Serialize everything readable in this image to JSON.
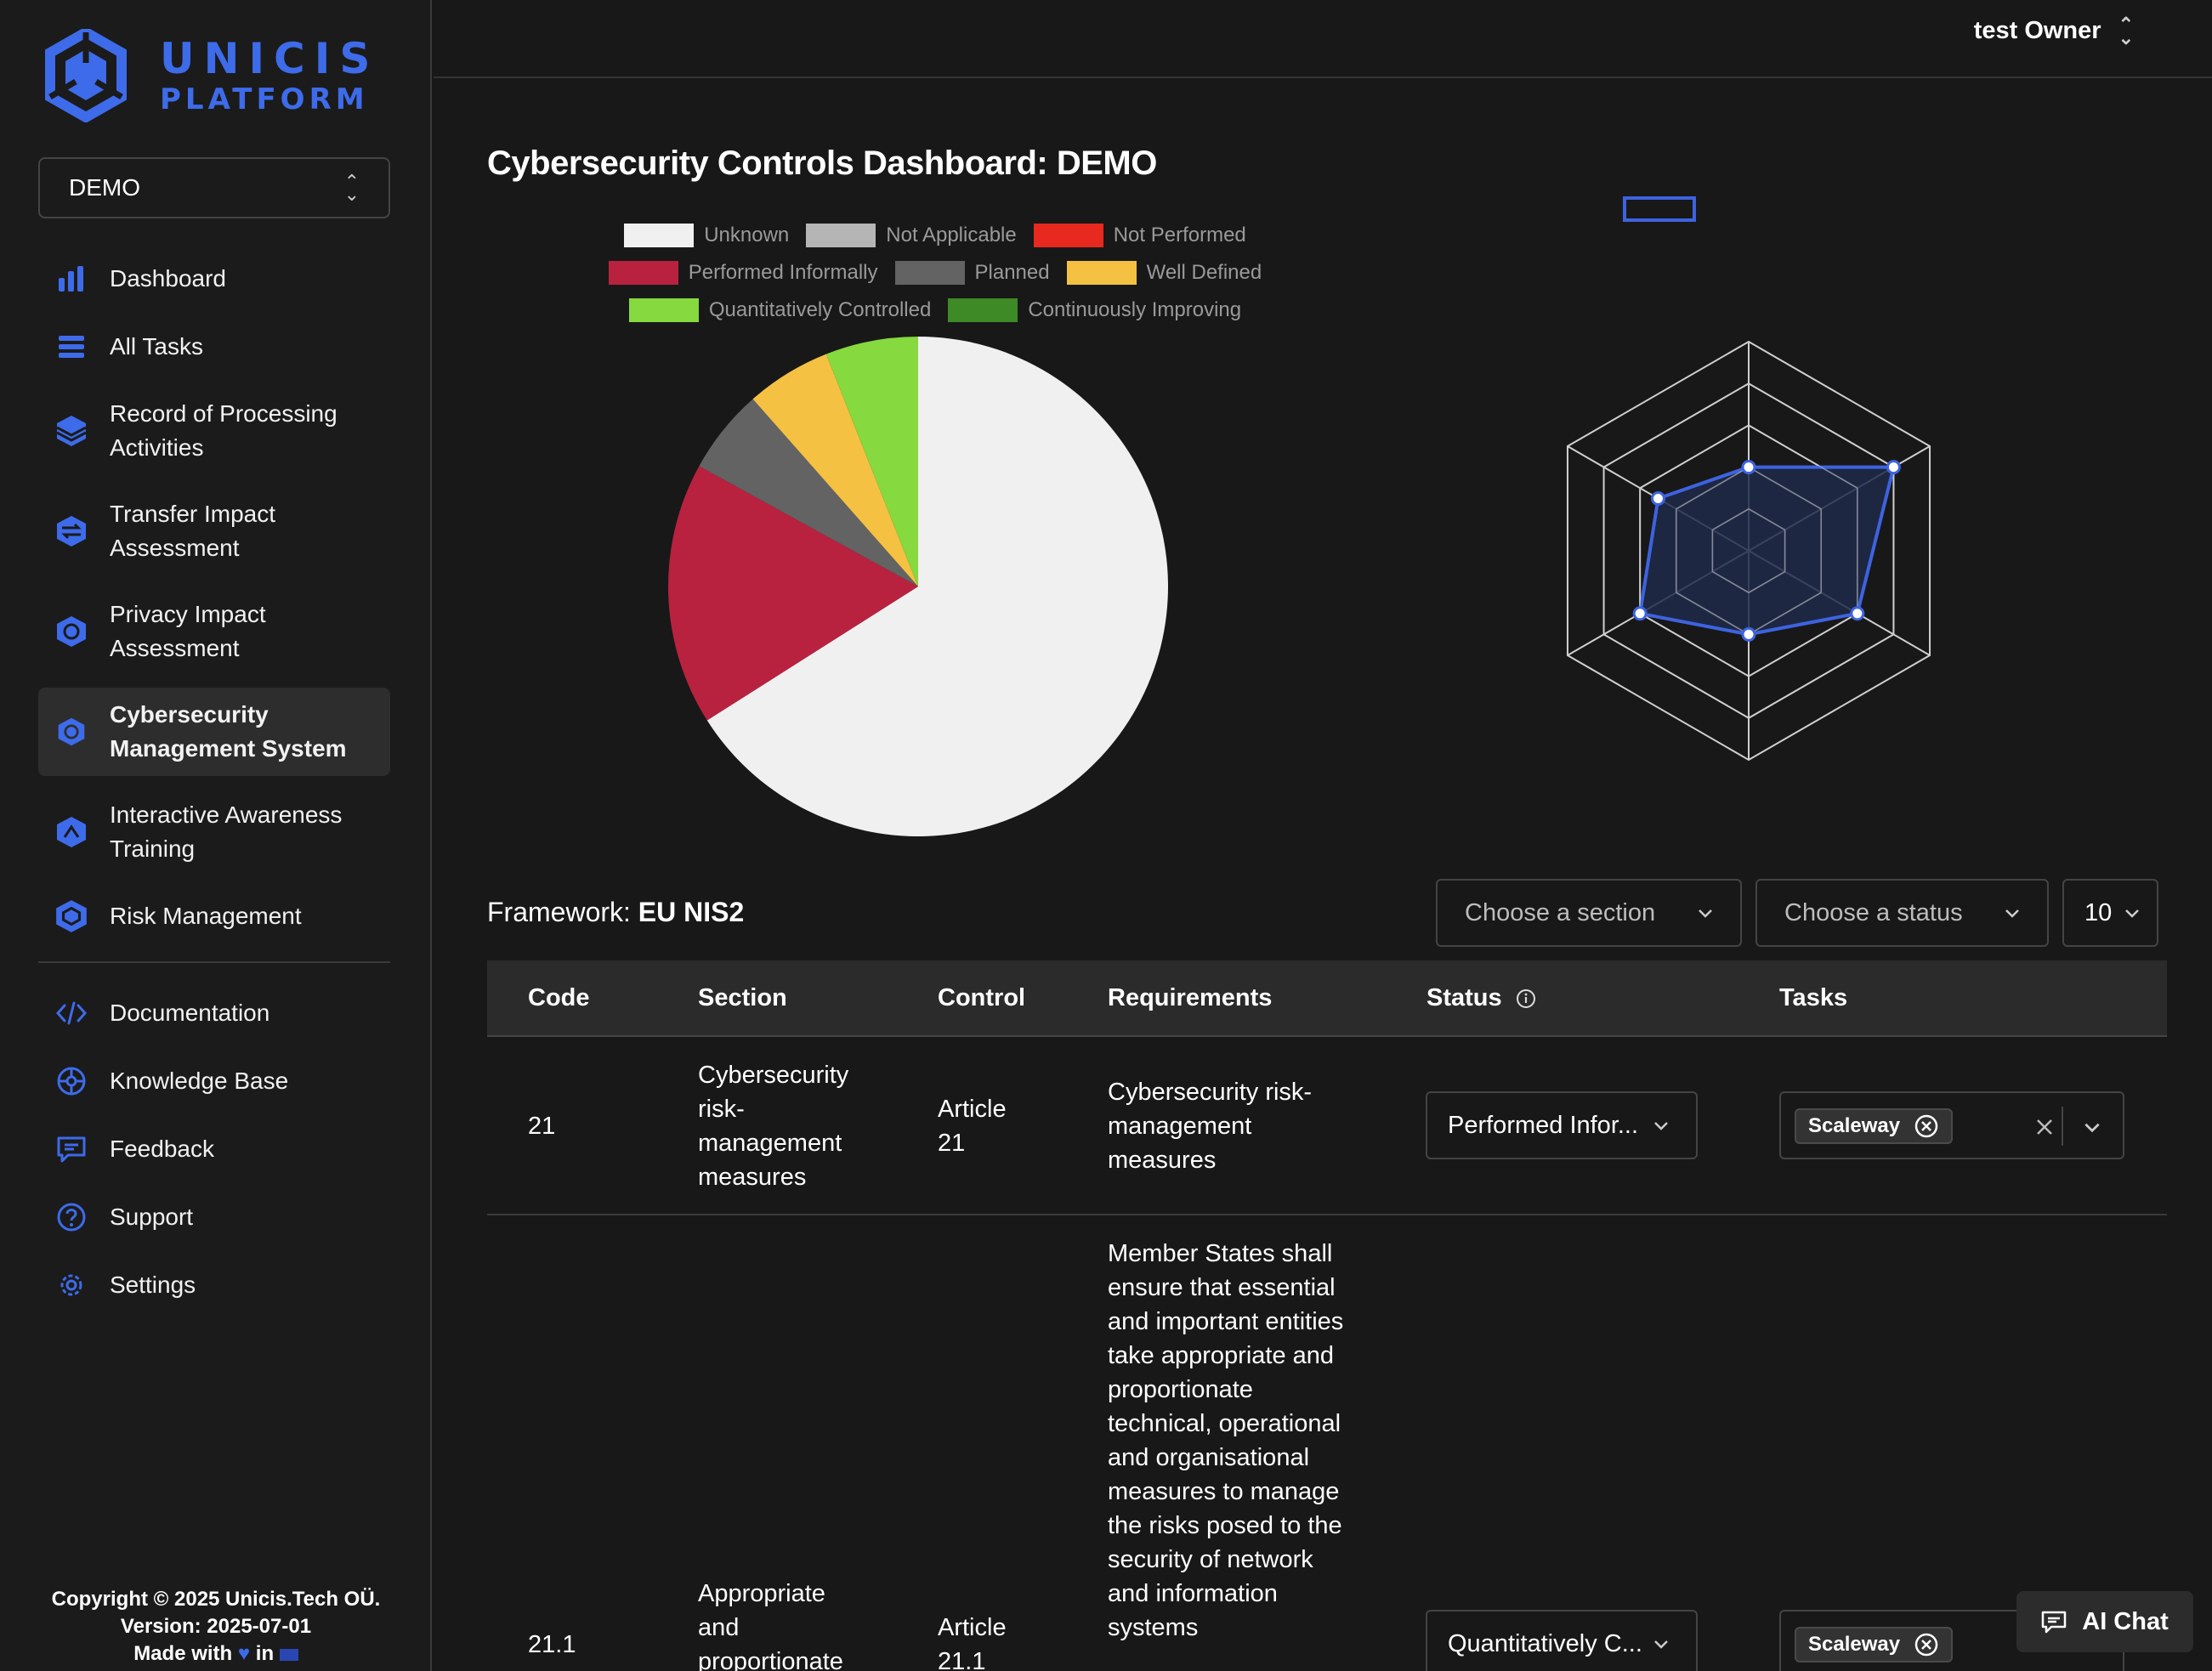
{
  "brand": {
    "line1": "UNICIS",
    "line2": "PLATFORM"
  },
  "org_selector": {
    "value": "DEMO"
  },
  "nav": {
    "items": [
      {
        "label": "Dashboard",
        "icon": "bar-chart-icon"
      },
      {
        "label": "All Tasks",
        "icon": "list-icon"
      },
      {
        "label": "Record of Processing Activities",
        "icon": "stack-icon"
      },
      {
        "label": "Transfer Impact Assessment",
        "icon": "transfer-icon"
      },
      {
        "label": "Privacy Impact Assessment",
        "icon": "shield-hex-icon"
      },
      {
        "label": "Cybersecurity Management System",
        "icon": "shield-hex-icon",
        "active": true
      },
      {
        "label": "Interactive Awareness Training",
        "icon": "training-icon"
      },
      {
        "label": "Risk Management",
        "icon": "risk-icon"
      }
    ],
    "secondary": [
      {
        "label": "Documentation",
        "icon": "code-icon"
      },
      {
        "label": "Knowledge Base",
        "icon": "knowledge-icon"
      },
      {
        "label": "Feedback",
        "icon": "feedback-icon"
      },
      {
        "label": "Support",
        "icon": "help-icon"
      },
      {
        "label": "Settings",
        "icon": "gear-icon"
      }
    ]
  },
  "footer": {
    "copyright": "Copyright © 2025 Unicis.Tech OÜ.",
    "version": "Version: 2025-07-01",
    "made_with_prefix": "Made with",
    "made_with_in": "in"
  },
  "user": {
    "name": "test Owner"
  },
  "page": {
    "title": "Cybersecurity Controls Dashboard: DEMO"
  },
  "chart_data": [
    {
      "type": "pie",
      "legend": [
        {
          "label": "Unknown",
          "color": "#f0f0f0"
        },
        {
          "label": "Not Applicable",
          "color": "#b5b5b5"
        },
        {
          "label": "Not Performed",
          "color": "#e8291f"
        },
        {
          "label": "Performed Informally",
          "color": "#b8223f"
        },
        {
          "label": "Planned",
          "color": "#636363"
        },
        {
          "label": "Well Defined",
          "color": "#f4c142"
        },
        {
          "label": "Quantitatively Controlled",
          "color": "#86d93e"
        },
        {
          "label": "Continuously Improving",
          "color": "#3d8a26"
        }
      ],
      "slices": [
        {
          "label": "Unknown",
          "value": 66,
          "color": "#f0f0f0"
        },
        {
          "label": "Performed Informally",
          "value": 17,
          "color": "#b8223f"
        },
        {
          "label": "Planned",
          "value": 5.5,
          "color": "#636363"
        },
        {
          "label": "Well Defined",
          "value": 5.5,
          "color": "#f4c142"
        },
        {
          "label": "Quantitatively Controlled",
          "value": 6,
          "color": "#86d93e"
        }
      ]
    },
    {
      "type": "radar",
      "axes": 6,
      "levels": 5,
      "max": 5,
      "values": [
        2,
        4,
        3,
        2,
        3,
        2.5
      ],
      "color": "#3d63e0",
      "fill": "#1f2a4a"
    }
  ],
  "framework": {
    "label": "Framework:",
    "name": "EU NIS2"
  },
  "filters": {
    "section": "Choose a section",
    "status": "Choose a status",
    "page_size": "10"
  },
  "table": {
    "columns": [
      "Code",
      "Section",
      "Control",
      "Requirements",
      "Status",
      "Tasks"
    ],
    "rows": [
      {
        "code": "21",
        "section": "Cybersecurity risk-management measures",
        "control": "Article 21",
        "requirements": "Cybersecurity risk-management measures",
        "status": "Performed Infor...",
        "task": "Scaleway"
      },
      {
        "code": "21.1",
        "section": "Appropriate and proportionate",
        "control": "Article 21.1",
        "requirements": "Member States shall ensure that essential and important entities take appropriate and proportionate technical, operational and organisational measures to manage the risks posed to the security of network and information systems",
        "status": "Quantitatively C...",
        "task": "Scaleway"
      }
    ]
  },
  "ai_chat": {
    "label": "AI Chat"
  }
}
